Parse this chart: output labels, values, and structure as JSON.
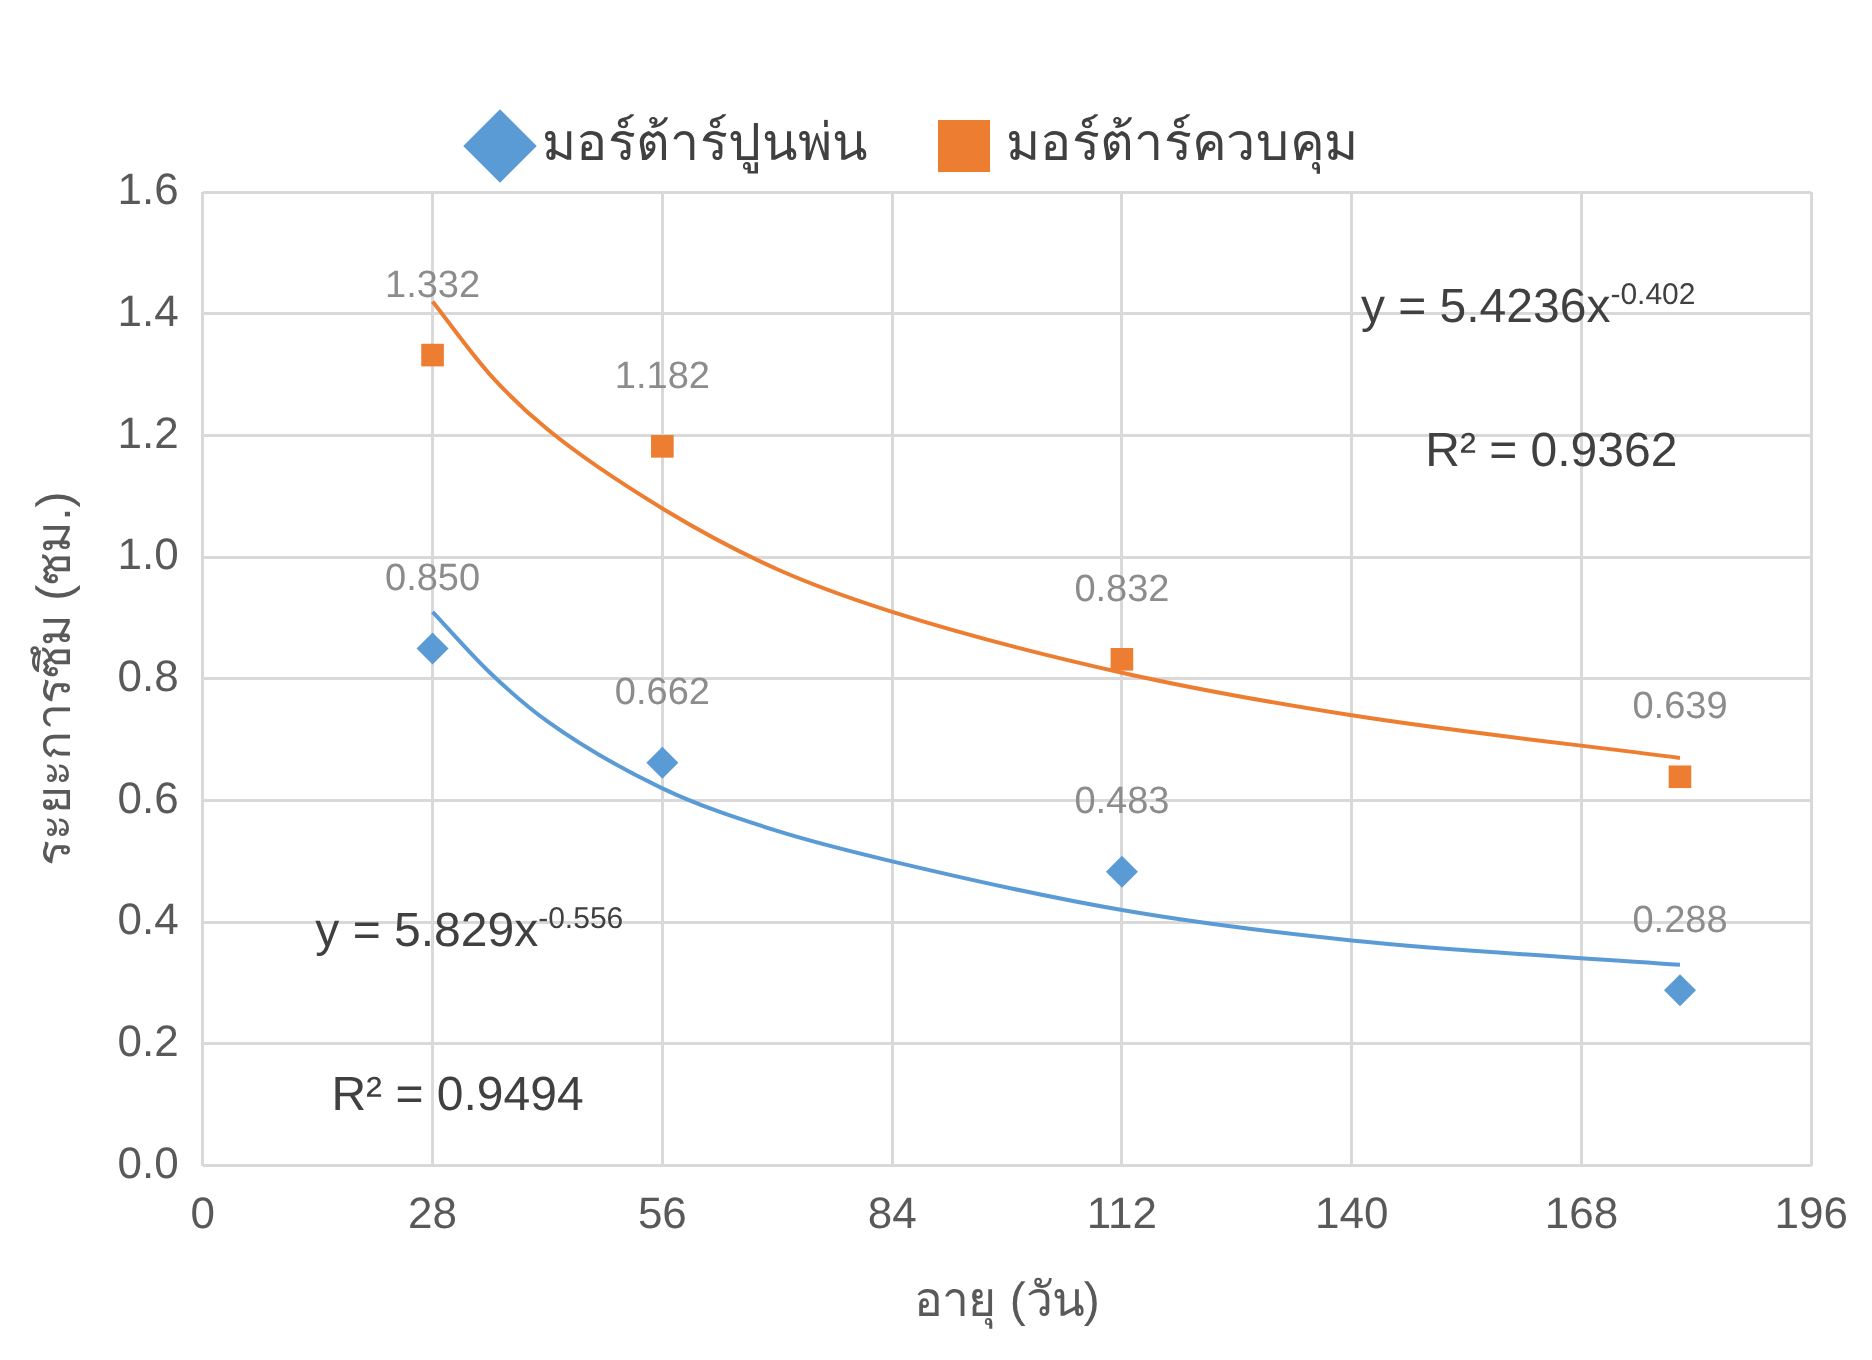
{
  "chart_data": {
    "type": "scatter",
    "xlabel": "อายุ (วัน)",
    "ylabel": "ระยะการซึม (ซม.)",
    "x": [
      28,
      56,
      112,
      180
    ],
    "series": [
      {
        "name": "มอร์ต้าร์ปูนพ่น",
        "color": "#5b9bd5",
        "marker": "diamond",
        "values": [
          0.85,
          0.662,
          0.483,
          0.288
        ],
        "value_labels": [
          "0.850",
          "0.662",
          "0.483",
          "0.288"
        ]
      },
      {
        "name": "มอร์ต้าร์ควบคุม",
        "color": "#ed7d31",
        "marker": "square",
        "values": [
          1.332,
          1.182,
          0.832,
          0.639
        ],
        "value_labels": [
          "1.332",
          "1.182",
          "0.832",
          "0.639"
        ]
      },
      {
        "type": "line",
        "color": "#5b9bd5",
        "marker": "none",
        "x": [
          28,
          35,
          42,
          56,
          70,
          84,
          112,
          140,
          180
        ],
        "values": [
          0.91,
          0.81,
          0.73,
          0.62,
          0.55,
          0.5,
          0.42,
          0.37,
          0.33
        ]
      },
      {
        "type": "line",
        "color": "#ed7d31",
        "marker": "none",
        "x": [
          28,
          35,
          42,
          56,
          70,
          84,
          112,
          140,
          180
        ],
        "values": [
          1.42,
          1.3,
          1.21,
          1.08,
          0.98,
          0.91,
          0.81,
          0.74,
          0.67
        ]
      }
    ],
    "xlim": [
      0,
      196
    ],
    "xticks": [
      0,
      28,
      56,
      84,
      112,
      140,
      168,
      196
    ],
    "ylim": [
      0,
      1.6
    ],
    "yticks": [
      {
        "value": 0,
        "label": "0.0"
      },
      {
        "value": 0.2,
        "label": "0.2"
      },
      {
        "value": 0.4,
        "label": "0.4"
      },
      {
        "value": 0.6,
        "label": "0.6"
      },
      {
        "value": 0.8,
        "label": "0.8"
      },
      {
        "value": 1,
        "label": "1.0"
      },
      {
        "value": 1.2,
        "label": "1.2"
      },
      {
        "value": 1.4,
        "label": "1.4"
      },
      {
        "value": 1.6,
        "label": "1.6"
      }
    ],
    "annotations": [
      "y = 5.4236x$^{-0.402}$",
      "R² = 0.9362",
      "y = 5.829x$^{-0.556}$",
      "R² = 0.9494"
    ],
    "grid": true,
    "legend": "top"
  }
}
